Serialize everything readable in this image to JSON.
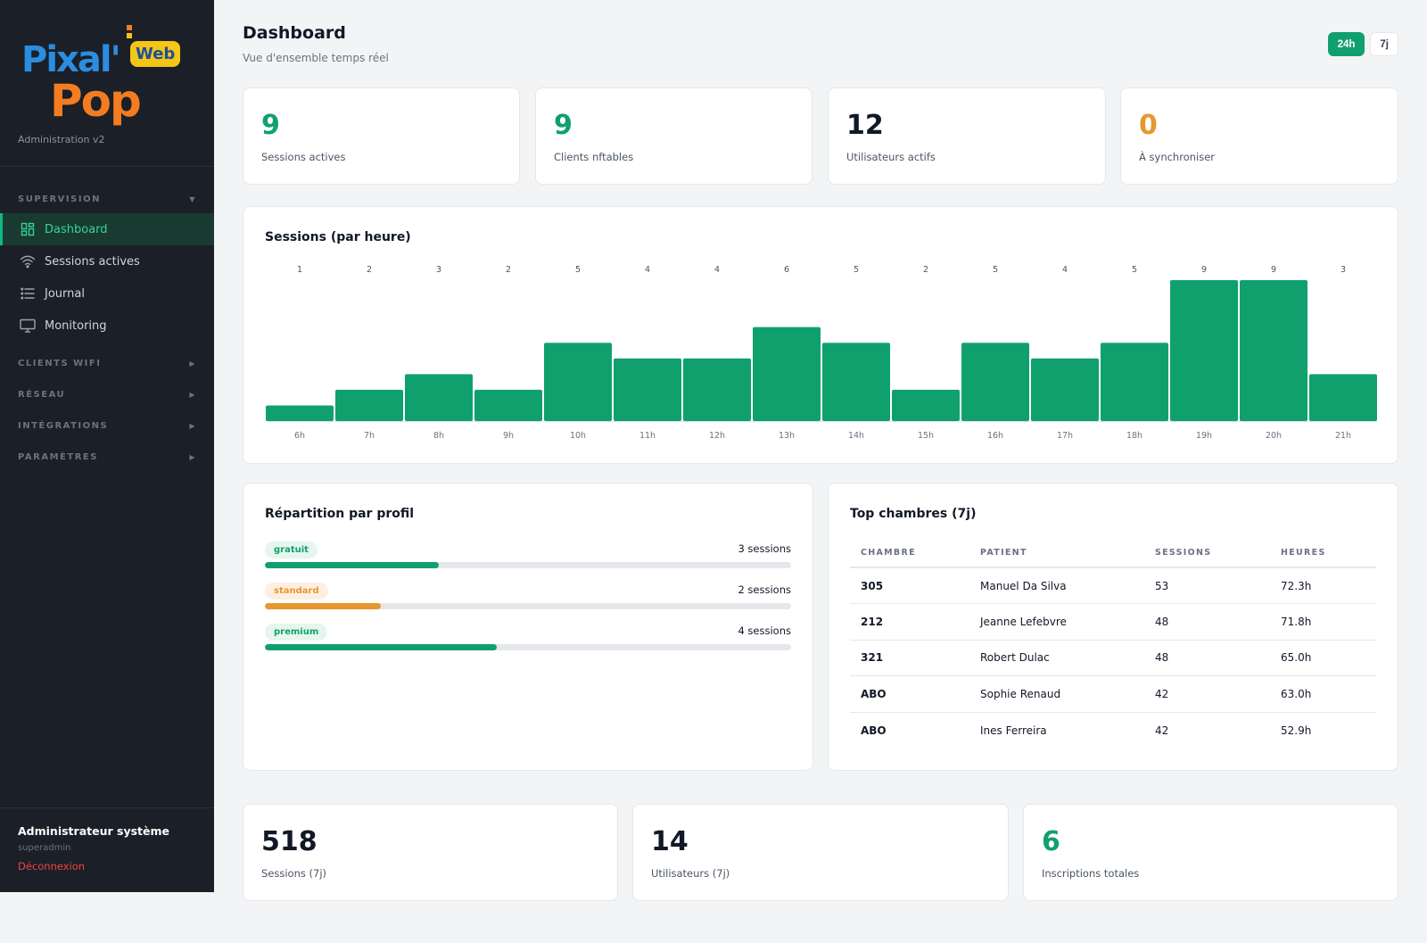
{
  "brand": {
    "logo_word1": "Pixal'",
    "logo_word2": "Pop",
    "logo_badge": "Web",
    "subtitle": "Administration v2",
    "colors": {
      "blue": "#2b8de0",
      "orange": "#f47c20",
      "yellow": "#f5c518"
    }
  },
  "sidebar": {
    "sections": [
      {
        "label": "SUPERVISION",
        "expanded": true,
        "arrow": "▼",
        "items": [
          {
            "label": "Dashboard",
            "icon": "dashboard-icon",
            "active": true
          },
          {
            "label": "Sessions actives",
            "icon": "wifi-icon",
            "active": false
          },
          {
            "label": "Journal",
            "icon": "list-icon",
            "active": false
          },
          {
            "label": "Monitoring",
            "icon": "monitor-icon",
            "active": false
          }
        ]
      },
      {
        "label": "CLIENTS WIFI",
        "expanded": false,
        "arrow": "▶"
      },
      {
        "label": "RÉSEAU",
        "expanded": false,
        "arrow": "▶"
      },
      {
        "label": "INTÉGRATIONS",
        "expanded": false,
        "arrow": "▶"
      },
      {
        "label": "PARAMÈTRES",
        "expanded": false,
        "arrow": "▶"
      }
    ],
    "user": {
      "name": "Administrateur système",
      "login": "superadmin",
      "logout": "Déconnexion"
    }
  },
  "header": {
    "title": "Dashboard",
    "subtitle": "Vue d'ensemble temps réel",
    "range_options": [
      "24h",
      "7j"
    ],
    "range_selected": "24h"
  },
  "kpis_top": [
    {
      "value": "9",
      "label": "Sessions actives",
      "color": "#10a06e"
    },
    {
      "value": "9",
      "label": "Clients nftables",
      "color": "#10a06e"
    },
    {
      "value": "12",
      "label": "Utilisateurs actifs",
      "color": "#111827"
    },
    {
      "value": "0",
      "label": "À synchroniser",
      "color": "#e8962e"
    }
  ],
  "sessions_chart": {
    "title": "Sessions (par heure)"
  },
  "chart_data": {
    "type": "bar",
    "title": "Sessions (par heure)",
    "categories": [
      "6h",
      "7h",
      "8h",
      "9h",
      "10h",
      "11h",
      "12h",
      "13h",
      "14h",
      "15h",
      "16h",
      "17h",
      "18h",
      "19h",
      "20h",
      "21h"
    ],
    "values": [
      1,
      2,
      3,
      2,
      5,
      4,
      4,
      6,
      5,
      2,
      5,
      4,
      5,
      9,
      9,
      3
    ],
    "color": "#10a06e",
    "ylim": [
      0,
      9
    ],
    "grid": false
  },
  "profiles": {
    "title": "Répartition par profil",
    "items": [
      {
        "name": "gratuit",
        "count_label": "3 sessions",
        "fraction": 0.33,
        "color": "#10a06e"
      },
      {
        "name": "standard",
        "count_label": "2 sessions",
        "fraction": 0.22,
        "color": "#e8962e"
      },
      {
        "name": "premium",
        "count_label": "4 sessions",
        "fraction": 0.44,
        "color": "#10a06e"
      }
    ]
  },
  "top_rooms": {
    "title": "Top chambres (7j)",
    "columns": [
      "CHAMBRE",
      "PATIENT",
      "SESSIONS",
      "HEURES"
    ],
    "rows": [
      [
        "305",
        "Manuel Da Silva",
        "53",
        "72.3h"
      ],
      [
        "212",
        "Jeanne Lefebvre",
        "48",
        "71.8h"
      ],
      [
        "321",
        "Robert Dulac",
        "48",
        "65.0h"
      ],
      [
        "ABO",
        "Sophie Renaud",
        "42",
        "63.0h"
      ],
      [
        "ABO",
        "Ines Ferreira",
        "42",
        "52.9h"
      ]
    ]
  },
  "kpis_bottom": [
    {
      "value": "518",
      "label": "Sessions (7j)",
      "color": "#111827"
    },
    {
      "value": "14",
      "label": "Utilisateurs (7j)",
      "color": "#111827"
    },
    {
      "value": "6",
      "label": "Inscriptions totales",
      "color": "#10a06e"
    }
  ]
}
